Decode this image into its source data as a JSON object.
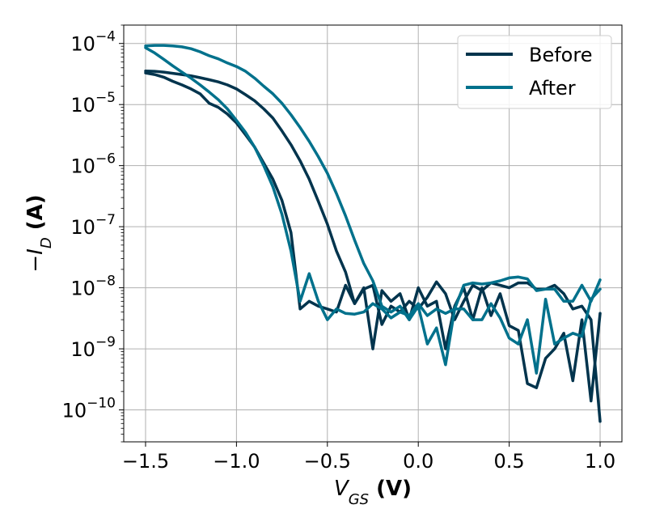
{
  "chart_data": {
    "type": "line",
    "y_scale": "log",
    "grid": true,
    "legend_placement": "top-right",
    "xlim": [
      -1.62,
      1.12
    ],
    "ylim": [
      3e-11,
      0.0002
    ],
    "x_ticks": [
      -1.5,
      -1.0,
      -0.5,
      0.0,
      0.5,
      1.0
    ],
    "x_tick_labels": [
      "−1.5",
      "−1.0",
      "−0.5",
      "0.0",
      "0.5",
      "1.0"
    ],
    "y_ticks": [
      -4,
      -5,
      -6,
      -7,
      -8,
      -9,
      -10
    ],
    "y_tick_labels": [
      {
        "base": "10",
        "exp": "−4"
      },
      {
        "base": "10",
        "exp": "−5"
      },
      {
        "base": "10",
        "exp": "−6"
      },
      {
        "base": "10",
        "exp": "−7"
      },
      {
        "base": "10",
        "exp": "−8"
      },
      {
        "base": "10",
        "exp": "−9"
      },
      {
        "base": "10",
        "exp": "−10"
      }
    ],
    "xlabel": {
      "main": "V",
      "sub": "GS",
      "unit": " (V)"
    },
    "ylabel": {
      "minus": "−",
      "main": "I",
      "sub": "D",
      "unit": " (A)"
    },
    "series": [
      {
        "name": "Before",
        "color": "#01344d",
        "forward": {
          "x": [
            -1.5,
            -1.45,
            -1.4,
            -1.35,
            -1.3,
            -1.25,
            -1.2,
            -1.15,
            -1.1,
            -1.05,
            -1.0,
            -0.95,
            -0.9,
            -0.85,
            -0.8,
            -0.75,
            -0.7,
            -0.65,
            -0.6,
            -0.55,
            -0.5,
            -0.45,
            -0.4,
            -0.35,
            -0.3,
            -0.25,
            -0.2,
            -0.15,
            -0.1,
            -0.05,
            0.0,
            0.05,
            0.1,
            0.15,
            0.2,
            0.25,
            0.3,
            0.35,
            0.4,
            0.45,
            0.5,
            0.55,
            0.6,
            0.65,
            0.7,
            0.75,
            0.8,
            0.85,
            0.9,
            0.95,
            1.0
          ],
          "y": [
            3.3e-05,
            3.1e-05,
            2.8e-05,
            2.4e-05,
            2.1e-05,
            1.8e-05,
            1.5e-05,
            1.05e-05,
            9e-06,
            7e-06,
            5e-06,
            3.2e-06,
            2e-06,
            1.1e-06,
            6e-07,
            2.7e-07,
            8e-08,
            4.5e-09,
            6e-09,
            5e-09,
            4.5e-09,
            4e-09,
            1.1e-08,
            5.5e-09,
            9.5e-09,
            1.1e-08,
            2.5e-09,
            5e-09,
            4e-09,
            6e-09,
            4.5e-09,
            7e-09,
            1.25e-08,
            8e-09,
            3e-09,
            6e-09,
            1.1e-08,
            9e-09,
            1.2e-08,
            1.1e-08,
            1e-08,
            1.2e-08,
            1.2e-08,
            9.5e-09,
            9.5e-09,
            1.1e-08,
            8e-09,
            4.5e-09,
            5e-09,
            3e-09,
            6.5e-11
          ]
        },
        "reverse": {
          "x": [
            1.0,
            0.95,
            0.9,
            0.85,
            0.8,
            0.75,
            0.7,
            0.65,
            0.6,
            0.55,
            0.5,
            0.45,
            0.4,
            0.35,
            0.3,
            0.25,
            0.2,
            0.15,
            0.1,
            0.05,
            0.0,
            -0.05,
            -0.1,
            -0.15,
            -0.2,
            -0.25,
            -0.3,
            -0.35,
            -0.4,
            -0.45,
            -0.5,
            -0.55,
            -0.6,
            -0.65,
            -0.7,
            -0.75,
            -0.8,
            -0.85,
            -0.9,
            -0.95,
            -1.0,
            -1.05,
            -1.1,
            -1.15,
            -1.2,
            -1.25,
            -1.3,
            -1.35,
            -1.4,
            -1.45,
            -1.5
          ],
          "y": [
            3.8e-09,
            1.4e-10,
            3e-09,
            3e-10,
            1.8e-09,
            1e-09,
            7e-10,
            2.3e-10,
            2.7e-10,
            2e-09,
            2.4e-09,
            8e-09,
            3.5e-09,
            1e-08,
            3e-09,
            1e-08,
            5e-09,
            1e-09,
            6e-09,
            5e-09,
            1e-08,
            3e-09,
            8e-09,
            6e-09,
            9e-09,
            1e-09,
            1e-08,
            5.5e-09,
            1.8e-08,
            4e-08,
            1.1e-07,
            2.6e-07,
            6e-07,
            1.2e-06,
            2.2e-06,
            3.7e-06,
            6e-06,
            8.5e-06,
            1.15e-05,
            1.45e-05,
            1.8e-05,
            2.1e-05,
            2.35e-05,
            2.55e-05,
            2.75e-05,
            2.95e-05,
            3.1e-05,
            3.25e-05,
            3.4e-05,
            3.5e-05,
            3.55e-05
          ]
        }
      },
      {
        "name": "After",
        "color": "#00718c",
        "forward": {
          "x": [
            -1.5,
            -1.45,
            -1.4,
            -1.35,
            -1.3,
            -1.25,
            -1.2,
            -1.15,
            -1.1,
            -1.05,
            -1.0,
            -0.95,
            -0.9,
            -0.85,
            -0.8,
            -0.75,
            -0.7,
            -0.65,
            -0.6,
            -0.55,
            -0.5,
            -0.45,
            -0.4,
            -0.35,
            -0.3,
            -0.25,
            -0.2,
            -0.15,
            -0.1,
            -0.05,
            0.0,
            0.05,
            0.1,
            0.15,
            0.2,
            0.25,
            0.3,
            0.35,
            0.4,
            0.45,
            0.5,
            0.55,
            0.6,
            0.65,
            0.7,
            0.75,
            0.8,
            0.85,
            0.9,
            0.95,
            1.0
          ],
          "y": [
            8.5e-05,
            7e-05,
            5.5e-05,
            4.3e-05,
            3.4e-05,
            2.7e-05,
            2.1e-05,
            1.6e-05,
            1.2e-05,
            8.5e-06,
            5.5e-06,
            3.5e-06,
            2e-06,
            1e-06,
            4.5e-07,
            1.6e-07,
            4e-08,
            6e-09,
            1.7e-08,
            6e-09,
            3e-09,
            4.5e-09,
            3.8e-09,
            3.7e-09,
            4e-09,
            5.5e-09,
            4.5e-09,
            3.2e-09,
            4e-09,
            3.5e-09,
            5.5e-09,
            3.5e-09,
            4.5e-09,
            3.8e-09,
            4.5e-09,
            4.5e-09,
            3e-09,
            3e-09,
            5.5e-09,
            3.2e-09,
            1.5e-09,
            1.2e-09,
            3e-09,
            4e-10,
            6.5e-09,
            1.2e-09,
            1.5e-09,
            1.8e-09,
            1.6e-09,
            6.5e-09,
            9.5e-09
          ]
        },
        "reverse": {
          "x": [
            1.0,
            0.95,
            0.9,
            0.85,
            0.8,
            0.75,
            0.7,
            0.65,
            0.6,
            0.55,
            0.5,
            0.45,
            0.4,
            0.35,
            0.3,
            0.25,
            0.2,
            0.15,
            0.1,
            0.05,
            0.0,
            -0.05,
            -0.1,
            -0.15,
            -0.2,
            -0.25,
            -0.3,
            -0.35,
            -0.4,
            -0.45,
            -0.5,
            -0.55,
            -0.6,
            -0.65,
            -0.7,
            -0.75,
            -0.8,
            -0.85,
            -0.9,
            -0.95,
            -1.0,
            -1.05,
            -1.1,
            -1.15,
            -1.2,
            -1.25,
            -1.3,
            -1.35,
            -1.4,
            -1.45,
            -1.5
          ],
          "y": [
            1.35e-08,
            6e-09,
            1.1e-08,
            6e-09,
            6e-09,
            9.5e-09,
            9.5e-09,
            9e-09,
            1.4e-08,
            1.5e-08,
            1.45e-08,
            1.3e-08,
            1.2e-08,
            1.15e-08,
            1.2e-08,
            1.1e-08,
            4.5e-09,
            5.5e-10,
            2.2e-09,
            1.2e-09,
            5e-09,
            3e-09,
            5e-09,
            4e-09,
            5e-09,
            1.3e-08,
            2.5e-08,
            6e-08,
            1.5e-07,
            3.5e-07,
            7.5e-07,
            1.4e-06,
            2.5e-06,
            4.2e-06,
            6.8e-06,
            1.05e-05,
            1.5e-05,
            2e-05,
            2.7e-05,
            3.5e-05,
            4.2e-05,
            4.8e-05,
            5.6e-05,
            6.3e-05,
            7.3e-05,
            8.2e-05,
            8.8e-05,
            9.1e-05,
            9.3e-05,
            9.3e-05,
            9.1e-05
          ]
        }
      }
    ]
  }
}
